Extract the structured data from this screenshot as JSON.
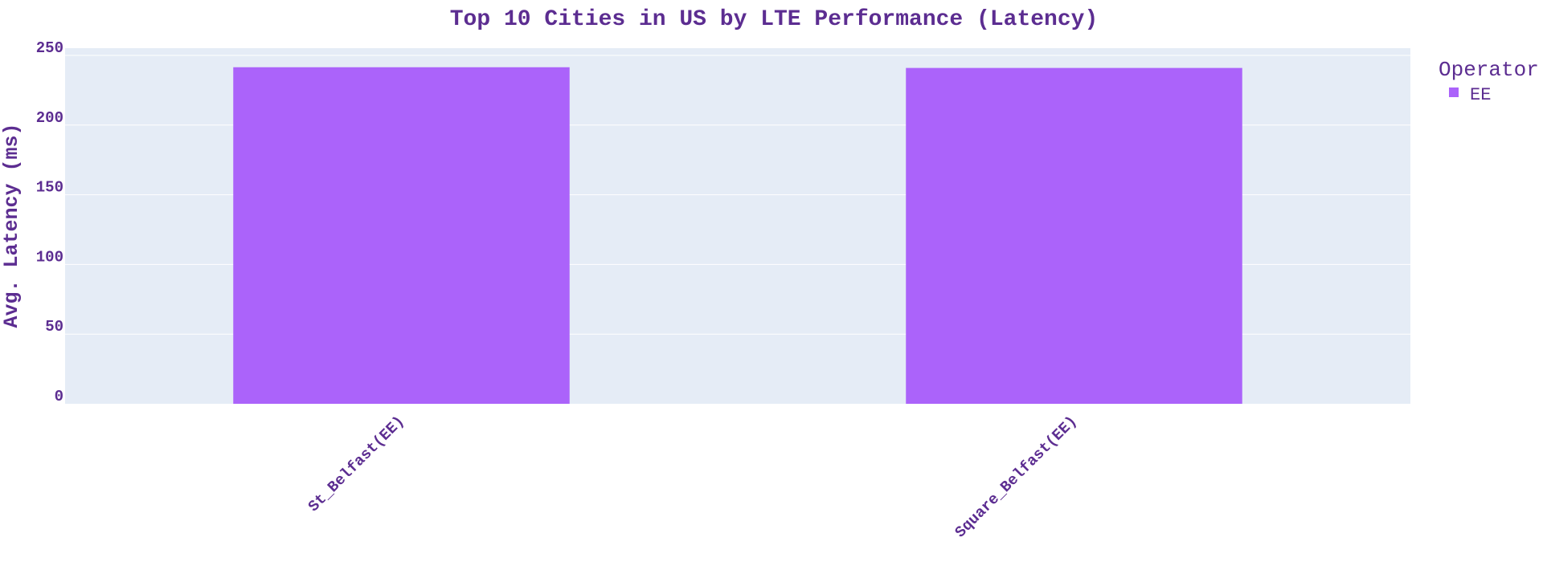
{
  "chart_data": {
    "type": "bar",
    "title": "Top 10 Cities in US by LTE Performance (Latency)",
    "xlabel": "",
    "ylabel": "Avg. Latency (ms)",
    "categories": [
      "St_Belfast(EE)",
      "Square_Belfast(EE)"
    ],
    "series": [
      {
        "name": "EE",
        "values": [
          241.5,
          241
        ]
      }
    ],
    "ylim": [
      0,
      250
    ],
    "yticks": [
      0,
      50,
      100,
      150,
      200,
      250
    ],
    "grid": true,
    "legend": {
      "title": "Operator",
      "placement": "top-right"
    },
    "colors": {
      "text": "#5c2d91",
      "plot_background": "#e5ecf6",
      "gridline": "#ffffff",
      "bar": "#ab63fa"
    }
  }
}
